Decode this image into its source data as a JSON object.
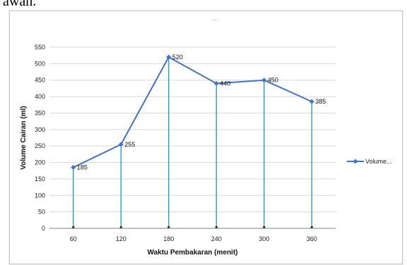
{
  "page": {
    "top_text": "awah."
  },
  "chart_data": {
    "type": "line",
    "title": "",
    "xlabel": "Waktu Pembakaran (menit)",
    "ylabel": "Volume Cairan (ml)",
    "x": [
      60,
      120,
      180,
      240,
      300,
      360
    ],
    "categories": [
      "60",
      "120",
      "180",
      "240",
      "300",
      "360"
    ],
    "series": [
      {
        "name": "Volume...",
        "values": [
          185,
          255,
          520,
          440,
          450,
          385
        ]
      }
    ],
    "data_labels": [
      "185",
      "255",
      "520",
      "440",
      "450",
      "385"
    ],
    "ylim": [
      0,
      550
    ],
    "yticks": [
      0,
      50,
      100,
      150,
      200,
      250,
      300,
      350,
      400,
      450,
      500,
      550
    ],
    "ytick_labels": [
      "0",
      "50",
      "100",
      "150",
      "200",
      "250",
      "300",
      "350",
      "400",
      "450",
      "500",
      "550"
    ],
    "grid": true,
    "drop_lines": true,
    "legend": "right",
    "colors": {
      "series": "#4472c4",
      "drop_line": "#1b98b0",
      "grid": "#d9d9d9",
      "axis": "#7f7f7f"
    }
  }
}
